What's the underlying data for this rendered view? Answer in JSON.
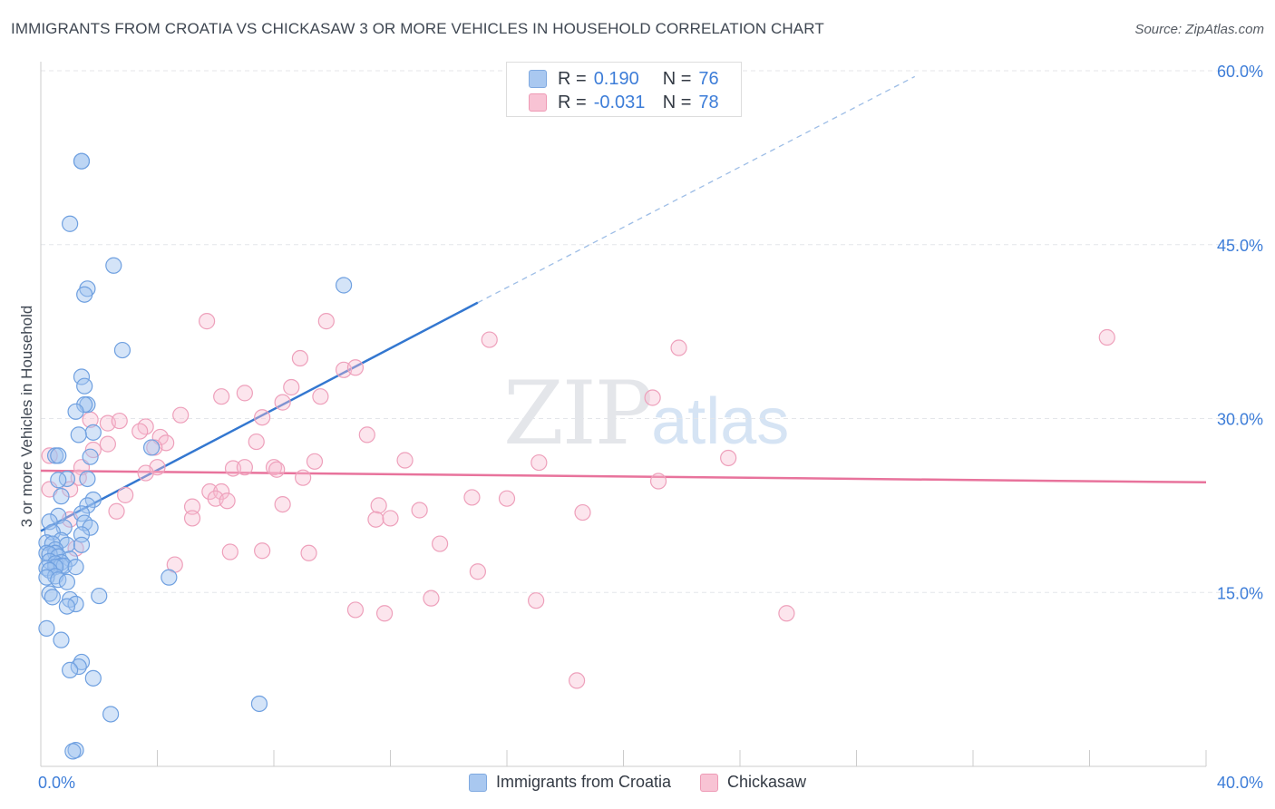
{
  "header": {
    "title": "IMMIGRANTS FROM CROATIA VS CHICKASAW 3 OR MORE VEHICLES IN HOUSEHOLD CORRELATION CHART",
    "source": "Source: ZipAtlas.com"
  },
  "watermark": {
    "part1": "ZIP",
    "part2": "atlas"
  },
  "stats": [
    {
      "r_label": "R =",
      "r_value": "0.190",
      "n_label": "N =",
      "n_value": "76",
      "color": "#a9c8f0",
      "border": "#7fa9e0"
    },
    {
      "r_label": "R =",
      "r_value": "-0.031",
      "n_label": "N =",
      "n_value": "78",
      "color": "#f8c3d4",
      "border": "#ee9ab5"
    }
  ],
  "legend": [
    {
      "label": "Immigrants from Croatia",
      "color": "#a9c8f0",
      "border": "#7fa9e0"
    },
    {
      "label": "Chickasaw",
      "color": "#f8c3d4",
      "border": "#ee9ab5"
    }
  ],
  "colors": {
    "blue_fill": "rgba(160,196,240,0.45)",
    "blue_stroke": "#6fa0e0",
    "blue_line": "#3377d0",
    "pink_fill": "rgba(248,190,210,0.40)",
    "pink_stroke": "#eea0bb",
    "pink_line": "#e8739c",
    "grid": "#e4e6ea",
    "tick_text": "#3d7dd8"
  },
  "chart_data": {
    "type": "scatter",
    "title": "IMMIGRANTS FROM CROATIA VS CHICKASAW 3 OR MORE VEHICLES IN HOUSEHOLD CORRELATION CHART",
    "xlabel": "",
    "ylabel": "3 or more Vehicles in Household",
    "xlim": [
      0,
      40
    ],
    "ylim": [
      0,
      60
    ],
    "x_tick_labels": [
      {
        "value": 0,
        "label": "0.0%"
      },
      {
        "value": 40,
        "label": "40.0%"
      }
    ],
    "x_minor_ticks": [
      0,
      4,
      8,
      12,
      16,
      20,
      24,
      28,
      32,
      36,
      40
    ],
    "y_ticks": [
      {
        "value": 15,
        "label": "15.0%"
      },
      {
        "value": 30,
        "label": "30.0%"
      },
      {
        "value": 45,
        "label": "45.0%"
      },
      {
        "value": 60,
        "label": "60.0%"
      }
    ],
    "grid": true,
    "legend_position": "bottom-center",
    "series": [
      {
        "name": "Immigrants from Croatia",
        "R": 0.19,
        "N": 76,
        "trend": {
          "x1": 0,
          "y1": 20.3,
          "x2": 15,
          "y2": 40.0,
          "dashed_to_x": 30,
          "dashed_to_y": 59.5
        },
        "points": [
          [
            1.4,
            52.2
          ],
          [
            1.4,
            52.2
          ],
          [
            1.0,
            46.8
          ],
          [
            2.5,
            43.2
          ],
          [
            1.6,
            41.2
          ],
          [
            1.5,
            40.7
          ],
          [
            10.4,
            41.5
          ],
          [
            2.8,
            35.9
          ],
          [
            1.4,
            33.6
          ],
          [
            1.5,
            32.8
          ],
          [
            1.6,
            31.2
          ],
          [
            1.5,
            31.2
          ],
          [
            1.2,
            30.6
          ],
          [
            1.8,
            28.8
          ],
          [
            1.3,
            28.6
          ],
          [
            3.8,
            27.5
          ],
          [
            0.5,
            26.8
          ],
          [
            0.6,
            26.8
          ],
          [
            1.7,
            26.7
          ],
          [
            0.9,
            24.8
          ],
          [
            1.6,
            24.8
          ],
          [
            0.6,
            24.7
          ],
          [
            0.7,
            23.3
          ],
          [
            1.8,
            23.0
          ],
          [
            1.6,
            22.5
          ],
          [
            1.4,
            21.8
          ],
          [
            0.6,
            21.6
          ],
          [
            1.5,
            21.0
          ],
          [
            0.3,
            21.1
          ],
          [
            0.8,
            20.6
          ],
          [
            1.7,
            20.6
          ],
          [
            0.4,
            20.2
          ],
          [
            1.4,
            20.0
          ],
          [
            0.7,
            19.5
          ],
          [
            0.2,
            19.3
          ],
          [
            0.4,
            19.2
          ],
          [
            0.9,
            19.1
          ],
          [
            1.4,
            19.1
          ],
          [
            0.5,
            18.7
          ],
          [
            0.2,
            18.4
          ],
          [
            0.5,
            18.4
          ],
          [
            0.3,
            18.3
          ],
          [
            0.6,
            18.1
          ],
          [
            1.0,
            17.9
          ],
          [
            0.3,
            17.7
          ],
          [
            0.7,
            17.6
          ],
          [
            0.5,
            17.5
          ],
          [
            0.7,
            17.3
          ],
          [
            0.8,
            17.3
          ],
          [
            0.5,
            17.2
          ],
          [
            1.2,
            17.2
          ],
          [
            0.2,
            17.1
          ],
          [
            0.3,
            16.9
          ],
          [
            0.5,
            16.4
          ],
          [
            4.4,
            16.3
          ],
          [
            0.2,
            16.3
          ],
          [
            0.6,
            16.1
          ],
          [
            0.9,
            15.9
          ],
          [
            0.3,
            14.9
          ],
          [
            2.0,
            14.7
          ],
          [
            0.4,
            14.6
          ],
          [
            1.0,
            14.4
          ],
          [
            1.2,
            14.0
          ],
          [
            0.9,
            13.8
          ],
          [
            0.2,
            11.9
          ],
          [
            0.7,
            10.9
          ],
          [
            1.4,
            9.0
          ],
          [
            1.3,
            8.6
          ],
          [
            1.0,
            8.3
          ],
          [
            1.8,
            7.6
          ],
          [
            7.5,
            5.4
          ],
          [
            2.4,
            4.5
          ],
          [
            1.2,
            1.4
          ],
          [
            1.1,
            1.3
          ]
        ]
      },
      {
        "name": "Chickasaw",
        "R": -0.031,
        "N": 78,
        "trend": {
          "x1": 0,
          "y1": 25.5,
          "x2": 40,
          "y2": 24.5
        },
        "points": [
          [
            5.7,
            38.4
          ],
          [
            9.8,
            38.4
          ],
          [
            15.4,
            36.8
          ],
          [
            21.9,
            36.1
          ],
          [
            36.6,
            37.0
          ],
          [
            8.9,
            35.2
          ],
          [
            10.4,
            34.2
          ],
          [
            10.8,
            34.4
          ],
          [
            8.6,
            32.7
          ],
          [
            7.0,
            32.2
          ],
          [
            6.2,
            31.9
          ],
          [
            9.6,
            31.9
          ],
          [
            8.3,
            31.4
          ],
          [
            21.0,
            31.8
          ],
          [
            4.8,
            30.3
          ],
          [
            7.6,
            30.1
          ],
          [
            1.7,
            29.9
          ],
          [
            2.3,
            29.6
          ],
          [
            2.7,
            29.8
          ],
          [
            3.6,
            29.3
          ],
          [
            3.4,
            28.9
          ],
          [
            11.2,
            28.6
          ],
          [
            4.1,
            28.4
          ],
          [
            2.3,
            27.8
          ],
          [
            1.8,
            27.3
          ],
          [
            4.3,
            27.9
          ],
          [
            7.4,
            28.0
          ],
          [
            3.9,
            27.5
          ],
          [
            12.5,
            26.4
          ],
          [
            17.1,
            26.2
          ],
          [
            9.4,
            26.3
          ],
          [
            23.6,
            26.6
          ],
          [
            0.3,
            26.8
          ],
          [
            6.6,
            25.7
          ],
          [
            7.0,
            25.8
          ],
          [
            8.0,
            25.8
          ],
          [
            8.1,
            25.6
          ],
          [
            4.0,
            25.8
          ],
          [
            3.6,
            25.3
          ],
          [
            1.4,
            25.8
          ],
          [
            1.3,
            24.9
          ],
          [
            9.0,
            24.9
          ],
          [
            0.3,
            23.9
          ],
          [
            1.0,
            23.9
          ],
          [
            2.9,
            23.4
          ],
          [
            5.8,
            23.7
          ],
          [
            6.2,
            23.7
          ],
          [
            6.0,
            23.1
          ],
          [
            6.4,
            22.9
          ],
          [
            14.8,
            23.2
          ],
          [
            16.0,
            23.1
          ],
          [
            21.2,
            24.6
          ],
          [
            5.2,
            22.4
          ],
          [
            8.3,
            22.6
          ],
          [
            11.6,
            22.5
          ],
          [
            13.0,
            22.1
          ],
          [
            18.6,
            21.9
          ],
          [
            2.6,
            22.0
          ],
          [
            5.2,
            21.4
          ],
          [
            11.5,
            21.3
          ],
          [
            12.0,
            21.4
          ],
          [
            1.0,
            21.3
          ],
          [
            13.7,
            19.2
          ],
          [
            1.2,
            18.8
          ],
          [
            7.6,
            18.6
          ],
          [
            6.5,
            18.5
          ],
          [
            9.2,
            18.4
          ],
          [
            4.6,
            17.4
          ],
          [
            15.0,
            16.8
          ],
          [
            13.4,
            14.5
          ],
          [
            10.8,
            13.5
          ],
          [
            11.8,
            13.2
          ],
          [
            17.0,
            14.3
          ],
          [
            25.6,
            13.2
          ],
          [
            18.4,
            7.4
          ]
        ]
      }
    ]
  }
}
